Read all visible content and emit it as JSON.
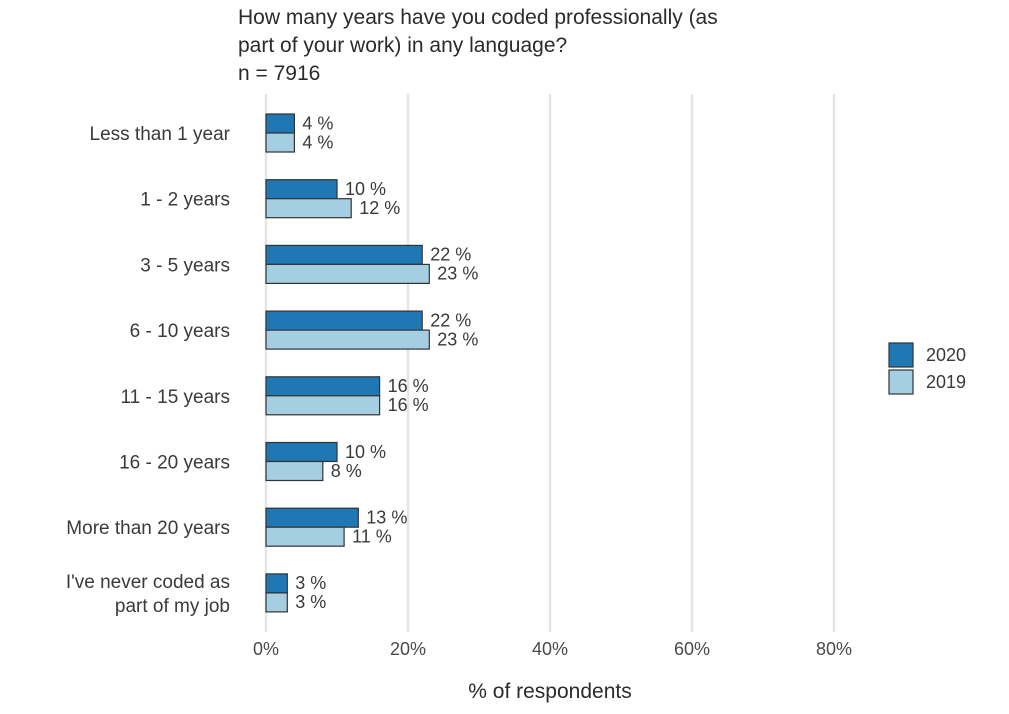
{
  "title": {
    "line1": "How many years have you coded professionally (as",
    "line2": "part of your work) in any language?",
    "subtitle": "n = 7916"
  },
  "colors": {
    "s2020": "#1f78b4",
    "s2019": "#a6cee3",
    "stroke": "#333333",
    "grid": "#e5e5e5"
  },
  "chart_data": {
    "type": "bar",
    "orientation": "horizontal",
    "categories": [
      [
        "Less than 1 year"
      ],
      [
        "1 - 2 years"
      ],
      [
        "3 - 5 years"
      ],
      [
        "6 - 10 years"
      ],
      [
        "11 - 15 years"
      ],
      [
        "16 - 20 years"
      ],
      [
        "More than 20 years"
      ],
      [
        "I've never coded as",
        "part of my job"
      ]
    ],
    "series": [
      {
        "name": "2020",
        "values": [
          4,
          10,
          22,
          22,
          16,
          10,
          13,
          3
        ],
        "labels": [
          "4 %",
          "10 %",
          "22 %",
          "22 %",
          "16 %",
          "10 %",
          "13 %",
          "3 %"
        ]
      },
      {
        "name": "2019",
        "values": [
          4,
          12,
          23,
          23,
          16,
          8,
          11,
          3
        ],
        "labels": [
          "4 %",
          "12 %",
          "23 %",
          "23 %",
          "16 %",
          "8 %",
          "11 %",
          "3 %"
        ]
      }
    ],
    "xlim": [
      0,
      80
    ],
    "xticks": [
      0,
      20,
      40,
      60,
      80
    ],
    "xtick_labels": [
      "0%",
      "20%",
      "40%",
      "60%",
      "80%"
    ],
    "xlabel": "% of respondents",
    "grid": "vertical",
    "legend": "right"
  }
}
